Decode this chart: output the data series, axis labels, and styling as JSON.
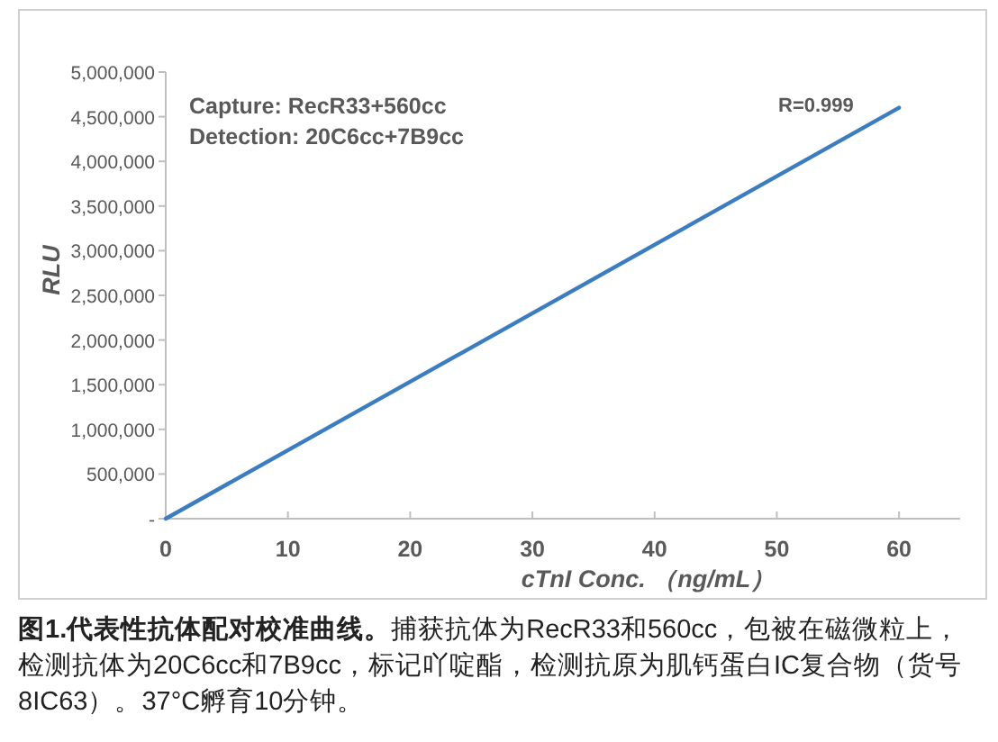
{
  "chart_data": {
    "type": "line",
    "title": "图1.代表性抗体配对校准曲线。",
    "subtitle": "捕获抗体为RecR33和560cc，包被在磁微粒上，检测抗体为20C6cc和7B9cc，标记吖啶酯，检测抗原为肌钙蛋白IC复合物（货号8IC63）。37°C孵育10分钟。",
    "xlabel": "cTnI Conc. （ng/mL）",
    "ylabel": "RLU",
    "annotations": [
      "Capture: RecR33+560cc",
      "Detection: 20C6cc+7B9cc",
      "R=0.999"
    ],
    "x": [
      0,
      60
    ],
    "series": [
      {
        "color": "#3b7dc0",
        "values": [
          0,
          4600000
        ]
      }
    ],
    "xlim": [
      0,
      65
    ],
    "xticks": [
      0,
      10,
      20,
      30,
      40,
      50,
      60
    ],
    "ylim": [
      0,
      5000000
    ],
    "yticks": [
      {
        "value": 0,
        "label": "-"
      },
      {
        "value": 500000,
        "label": "500,000"
      },
      {
        "value": 1000000,
        "label": "1,000,000"
      },
      {
        "value": 1500000,
        "label": "1,500,000"
      },
      {
        "value": 2000000,
        "label": "2,000,000"
      },
      {
        "value": 2500000,
        "label": "2,500,000"
      },
      {
        "value": 3000000,
        "label": "3,000,000"
      },
      {
        "value": 3500000,
        "label": "3,500,000"
      },
      {
        "value": 4000000,
        "label": "4,000,000"
      },
      {
        "value": 4500000,
        "label": "4,500,000"
      },
      {
        "value": 5000000,
        "label": "5,000,000"
      }
    ],
    "grid": false,
    "marker": "none",
    "line_style": "solid"
  }
}
